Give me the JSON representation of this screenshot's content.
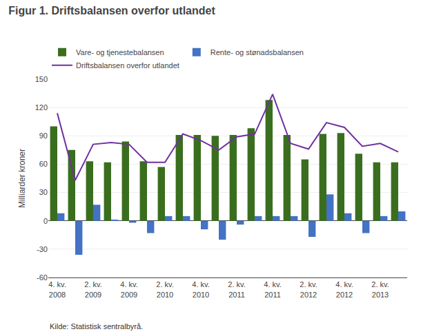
{
  "chart_data": {
    "type": "bar",
    "title": "Figur 1. Driftsbalansen overfor utlandet",
    "ylabel": "Milliarder kroner",
    "annotations": [
      "Kilde: Statistisk sentralbyrå."
    ],
    "categories": [
      "4. kv.\n2008",
      null,
      "2. kv.\n2009",
      null,
      "4. kv.\n2009",
      null,
      "2. kv.\n2010",
      null,
      "4. kv.\n2010",
      null,
      "2. kv.\n2011",
      null,
      "4. kv.\n2011",
      null,
      "2. kv.\n2012",
      null,
      "4. kv.\n2012",
      null,
      "2. kv.\n2013",
      null
    ],
    "series": [
      {
        "name": "Vare- og tjenestebalansen",
        "type": "bar",
        "color": "#3a6e1f",
        "values": [
          100,
          75,
          63,
          62,
          84,
          63,
          57,
          91,
          91,
          90,
          91,
          98,
          128,
          91,
          65,
          92,
          93,
          71,
          62,
          62
        ]
      },
      {
        "name": "Rente- og stønadsbalansen",
        "type": "bar",
        "color": "#4472c4",
        "values": [
          8,
          -36,
          17,
          1,
          -2,
          -13,
          5,
          5,
          -9,
          -20,
          -4,
          5,
          5,
          5,
          -17,
          28,
          8,
          -13,
          5,
          10
        ]
      },
      {
        "name": "Driftsbalansen overfor utlandet",
        "type": "line",
        "color": "#7030a0",
        "values": [
          114,
          43,
          81,
          83,
          81,
          62,
          62,
          92,
          85,
          75,
          89,
          92,
          134,
          82,
          76,
          104,
          99,
          79,
          82,
          73
        ]
      }
    ],
    "ylim": [
      -60,
      150
    ],
    "yticks": [
      -60,
      -30,
      0,
      30,
      60,
      90,
      120,
      150
    ],
    "grid": true,
    "legend": "top"
  }
}
